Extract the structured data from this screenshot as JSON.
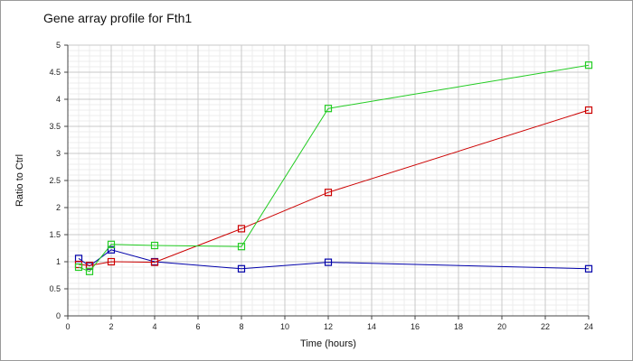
{
  "chart_data": {
    "type": "line",
    "title": "Gene array profile for Fth1",
    "xlabel": "Time (hours)",
    "ylabel": "Ratio to Ctrl",
    "xlim": [
      0,
      24
    ],
    "ylim": [
      0,
      5
    ],
    "x_ticks": [
      "0",
      "2",
      "4",
      "6",
      "8",
      "10",
      "12",
      "14",
      "16",
      "18",
      "20",
      "22",
      "24"
    ],
    "y_ticks": [
      "0",
      "0.5",
      "1",
      "1.5",
      "2",
      "2.5",
      "3",
      "3.5",
      "4",
      "4.5",
      "5"
    ],
    "grid": true,
    "legend": "none",
    "marker": "hollow-square",
    "series": [
      {
        "color": "#0000aa",
        "x": [
          0.5,
          1,
          2,
          4,
          8,
          12,
          24
        ],
        "y": [
          1.06,
          0.92,
          1.22,
          1.0,
          0.87,
          0.99,
          0.87
        ]
      },
      {
        "color": "#cc0000",
        "x": [
          0.5,
          1,
          2,
          4,
          8,
          12,
          24
        ],
        "y": [
          0.95,
          0.93,
          1.0,
          0.99,
          1.61,
          2.28,
          3.8
        ]
      },
      {
        "color": "#22cc22",
        "x": [
          0.5,
          1,
          2,
          4,
          8,
          12,
          24
        ],
        "y": [
          0.9,
          0.82,
          1.32,
          1.3,
          1.28,
          3.83,
          4.63
        ]
      }
    ]
  }
}
